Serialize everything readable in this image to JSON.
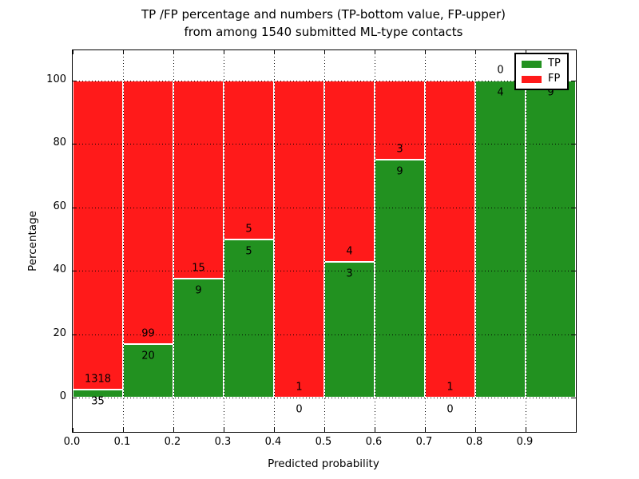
{
  "title": {
    "line1": "TP /FP percentage and numbers (TP-bottom value, FP-upper)",
    "line2": "from among 1540 submitted ML-type contacts"
  },
  "axes": {
    "xlabel": "Predicted probability",
    "ylabel": "Percentage",
    "x_tick_labels": [
      "0.0",
      "0.1",
      "0.2",
      "0.3",
      "0.4",
      "0.5",
      "0.6",
      "0.7",
      "0.8",
      "0.9"
    ],
    "y_tick_labels": [
      "0",
      "20",
      "40",
      "60",
      "80",
      "100"
    ],
    "y_tick_values": [
      0,
      20,
      40,
      60,
      80,
      100
    ]
  },
  "legend": {
    "position": "upper right",
    "items": [
      {
        "label": "TP",
        "color": "#229120"
      },
      {
        "label": "FP",
        "color": "#ff1a1a"
      }
    ]
  },
  "colors": {
    "tp_green": "#229120",
    "fp_red": "#ff1a1a",
    "text": "#000000",
    "background": "#ffffff"
  },
  "chart_data": {
    "type": "bar",
    "stacked": true,
    "normalized_to_percent": true,
    "title": "TP /FP percentage and numbers (TP-bottom value, FP-upper) from among 1540 submitted ML-type contacts",
    "xlabel": "Predicted probability",
    "ylabel": "Percentage",
    "xlim": [
      0.0,
      1.0
    ],
    "ylim": [
      -11,
      110
    ],
    "grid": true,
    "grid_style": "dotted",
    "legend_position": "upper right",
    "total_contacts": 1540,
    "bin_width": 0.1,
    "categories": [
      "0.0-0.1",
      "0.1-0.2",
      "0.2-0.3",
      "0.3-0.4",
      "0.4-0.5",
      "0.5-0.6",
      "0.6-0.7",
      "0.7-0.8",
      "0.8-0.9",
      "0.9-1.0"
    ],
    "series": [
      {
        "name": "TP",
        "color": "#229120",
        "values": [
          35,
          20,
          9,
          5,
          0,
          3,
          9,
          0,
          4,
          9
        ]
      },
      {
        "name": "FP",
        "color": "#ff1a1a",
        "values": [
          1318,
          99,
          15,
          5,
          1,
          4,
          3,
          1,
          0,
          0
        ]
      }
    ],
    "tp_percent_of_bin": [
      2.59,
      16.81,
      37.5,
      50.0,
      0.0,
      42.86,
      75.0,
      0.0,
      100.0,
      100.0
    ]
  }
}
